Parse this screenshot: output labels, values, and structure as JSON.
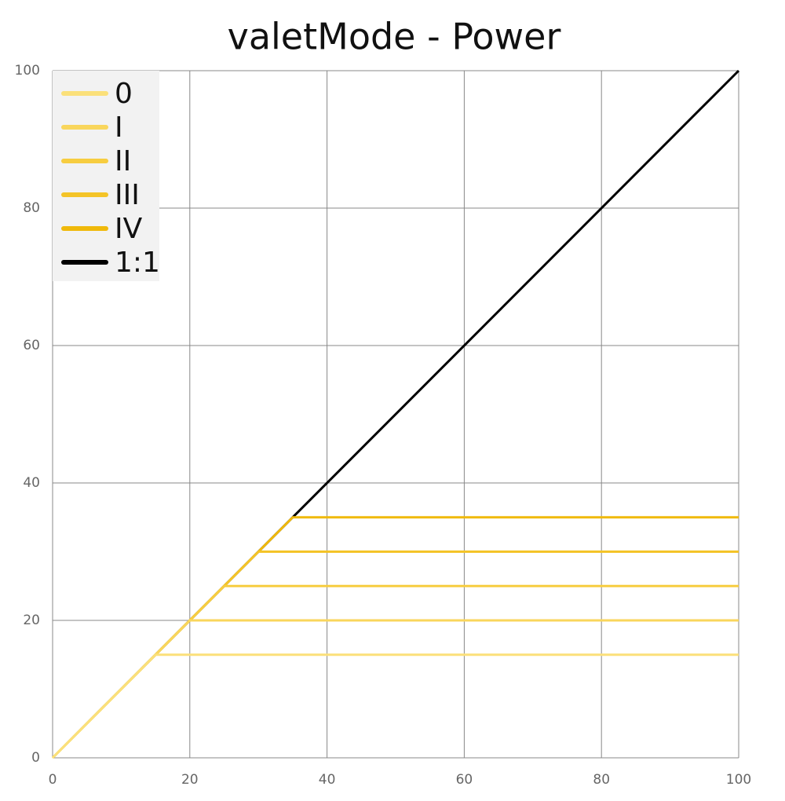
{
  "chart_data": {
    "type": "line",
    "title": "valetMode - Power",
    "xlim": [
      0,
      100
    ],
    "ylim": [
      0,
      100
    ],
    "xticks": [
      0,
      20,
      40,
      60,
      80,
      100
    ],
    "yticks": [
      0,
      20,
      40,
      60,
      80,
      100
    ],
    "grid": true,
    "legend": "upper-left",
    "series": [
      {
        "name": "0",
        "color": "#fbe07a",
        "x": [
          0,
          15,
          100
        ],
        "values": [
          0,
          15,
          15
        ]
      },
      {
        "name": "I",
        "color": "#f9d65c",
        "x": [
          0,
          20,
          100
        ],
        "values": [
          0,
          20,
          20
        ]
      },
      {
        "name": "II",
        "color": "#f7cd40",
        "x": [
          0,
          25,
          100
        ],
        "values": [
          0,
          25,
          25
        ]
      },
      {
        "name": "III",
        "color": "#f4c428",
        "x": [
          0,
          30,
          100
        ],
        "values": [
          0,
          30,
          30
        ]
      },
      {
        "name": "IV",
        "color": "#f0b90b",
        "x": [
          0,
          35,
          100
        ],
        "values": [
          0,
          35,
          35
        ]
      },
      {
        "name": "1:1",
        "color": "#000000",
        "x": [
          0,
          100
        ],
        "values": [
          0,
          100
        ]
      }
    ]
  }
}
